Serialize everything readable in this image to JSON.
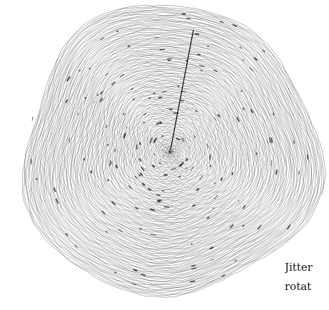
{
  "caption": {
    "line1": "Jitter",
    "line2": "rotat"
  },
  "artwork": {
    "description_name": "jittered-rotating-spiral",
    "ink_color": "#000000",
    "background_color": "#ffffff"
  }
}
